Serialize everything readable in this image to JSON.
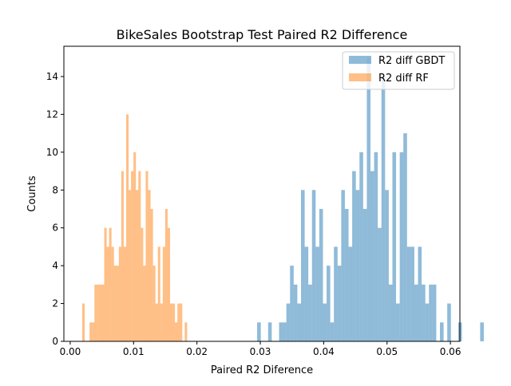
{
  "chart_data": {
    "type": "histogram",
    "title": "BikeSales Bootstrap Test Paired R2 Difference",
    "xlabel": "Paired R2 Diference",
    "ylabel": "Counts",
    "xlim": [
      -0.001,
      0.0615
    ],
    "ylim": [
      0,
      15.6
    ],
    "xticks": [
      0.0,
      0.01,
      0.02,
      0.03,
      0.04,
      0.05,
      0.06
    ],
    "xtick_labels": [
      "0.00",
      "0.01",
      "0.02",
      "0.03",
      "0.04",
      "0.05",
      "0.06"
    ],
    "yticks": [
      0,
      2,
      4,
      6,
      8,
      10,
      12,
      14
    ],
    "ytick_labels": [
      "0",
      "2",
      "4",
      "6",
      "8",
      "10",
      "12",
      "14"
    ],
    "legend_position": "top-right",
    "series": [
      {
        "name": "R2 diff GBDT",
        "color": "#1f77b4",
        "alpha": 0.5,
        "bin_start": 0.0295,
        "bin_width": 0.000577,
        "counts": [
          1,
          0,
          0,
          1,
          0,
          0,
          1,
          1,
          2,
          4,
          3,
          2,
          8,
          5,
          3,
          8,
          5,
          7,
          2,
          4,
          1,
          5,
          4,
          8,
          7,
          5,
          9,
          8,
          10,
          7,
          15,
          9,
          10,
          6,
          14,
          8,
          3,
          10,
          2,
          10,
          11,
          5,
          5,
          3,
          5,
          3,
          2,
          3,
          3,
          0,
          1,
          0,
          2,
          0,
          0,
          1,
          0,
          0,
          0,
          0,
          0,
          1
        ]
      },
      {
        "name": "R2 diff RF",
        "color": "#ff7f0e",
        "alpha": 0.5,
        "bin_start": 0.0019,
        "bin_width": 0.000385,
        "counts": [
          2,
          0,
          0,
          1,
          1,
          3,
          3,
          3,
          3,
          6,
          5,
          6,
          5,
          4,
          4,
          5,
          9,
          5,
          12,
          8,
          9,
          10,
          8,
          9,
          6,
          4,
          9,
          8,
          7,
          4,
          2,
          5,
          2,
          5,
          7,
          6,
          2,
          2,
          1,
          2,
          2,
          0,
          1
        ]
      }
    ]
  }
}
